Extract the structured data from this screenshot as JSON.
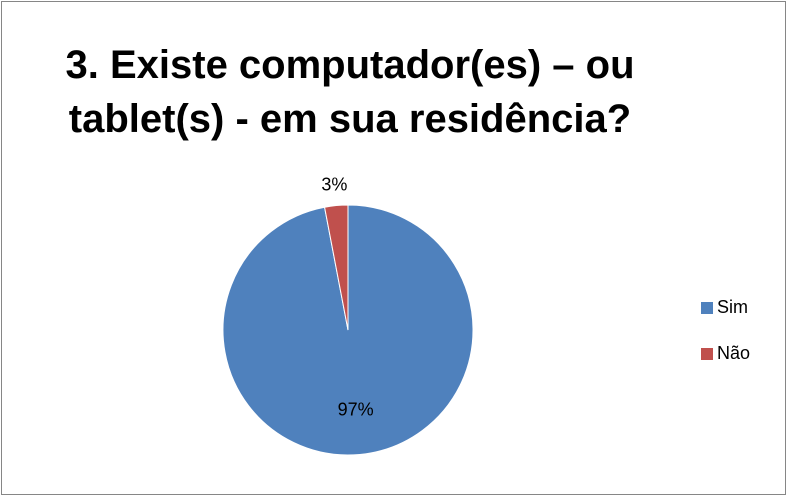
{
  "chart_data": {
    "type": "pie",
    "title": "3. Existe computador(es) – ou tablet(s) - em sua residência?",
    "categories": [
      "Sim",
      "Não"
    ],
    "values": [
      97,
      3
    ],
    "value_labels": [
      "97%",
      "3%"
    ],
    "colors": [
      "#4f81bd",
      "#c0504d"
    ],
    "legend": "right"
  }
}
